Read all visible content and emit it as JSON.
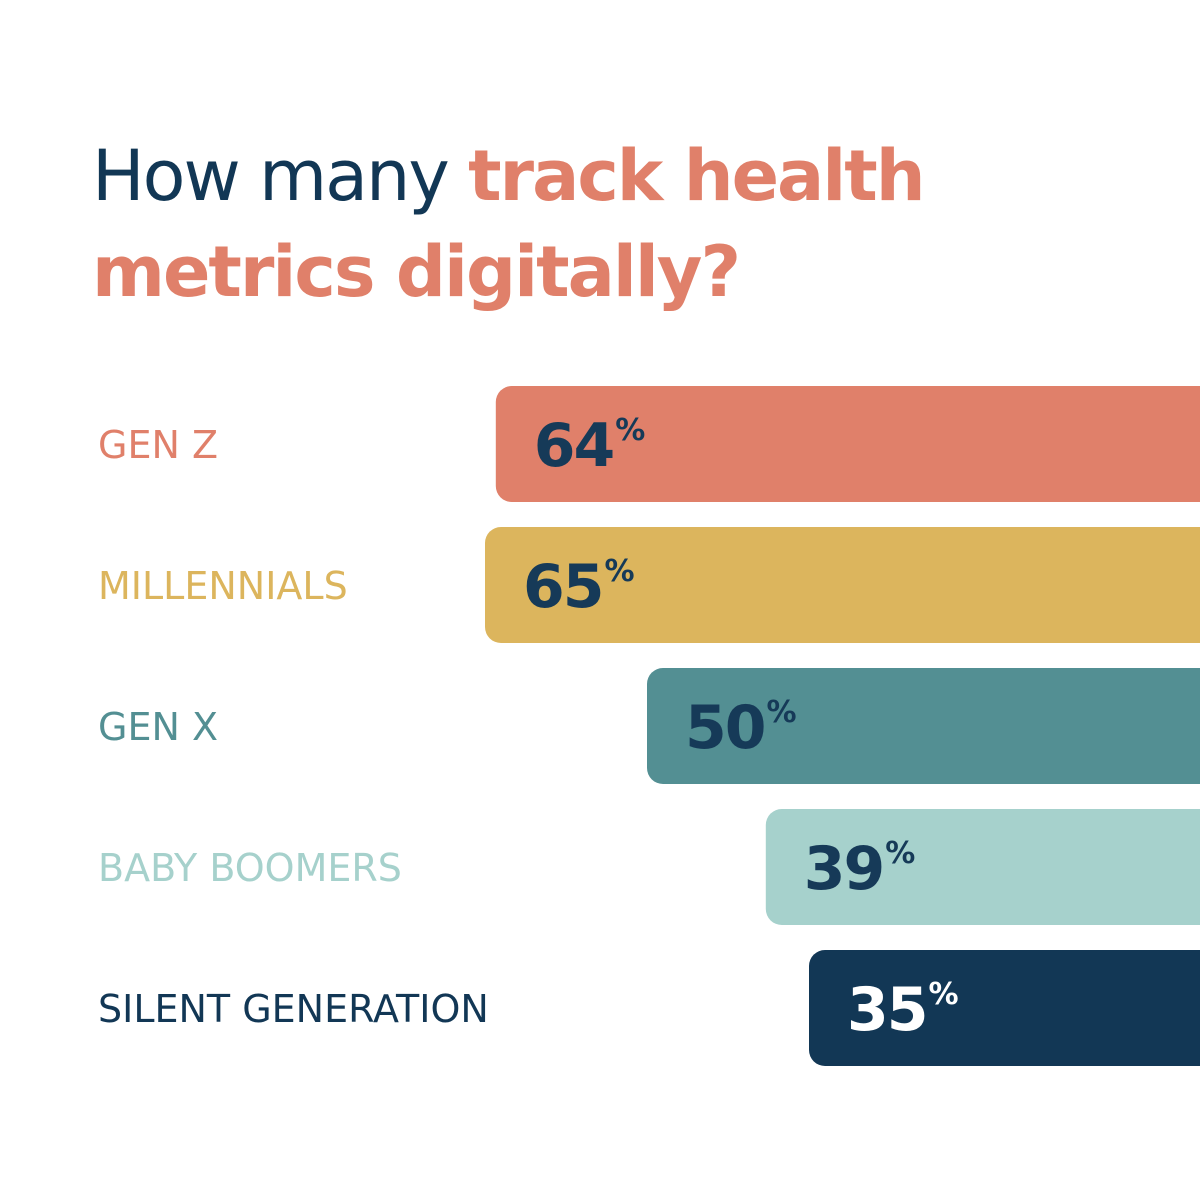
{
  "chart_data": {
    "type": "bar",
    "orientation": "horizontal",
    "title_part1": "How many ",
    "title_part2": "track health metrics digitally?",
    "categories": [
      "GEN Z",
      "MILLENNIALS",
      "GEN X",
      "BABY BOOMERS",
      "SILENT GENERATION"
    ],
    "values": [
      64,
      65,
      50,
      39,
      35
    ],
    "unit": "%",
    "colors": [
      "#e0806a",
      "#dcb55d",
      "#538f93",
      "#a6d1cc",
      "#123755"
    ],
    "title_color": "#123755",
    "accent_color": "#e0806a",
    "value_text_color": "#163a58",
    "value_text_color_dark_bar": "#ffffff",
    "grid": false,
    "legend": "none"
  }
}
